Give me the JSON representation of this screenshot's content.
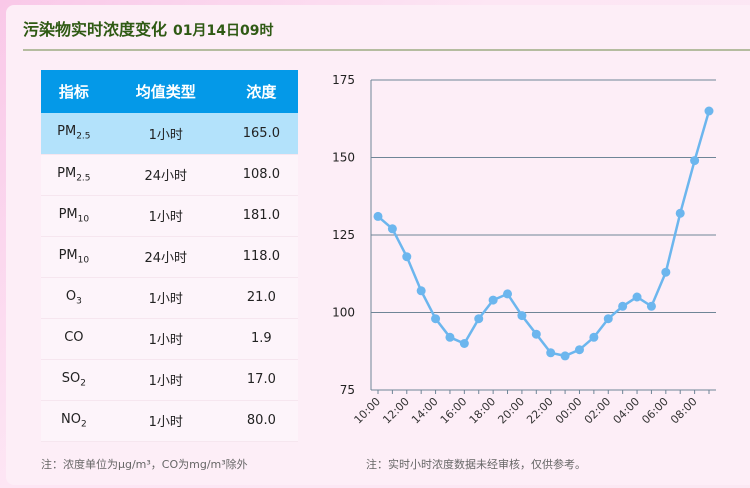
{
  "header": {
    "title": "污染物实时浓度变化",
    "datetime": "01月14日09时"
  },
  "table": {
    "columns": [
      "指标",
      "均值类型",
      "浓度"
    ],
    "rows": [
      {
        "name": "PM",
        "sub": "2.5",
        "type": "1小时",
        "value": "165.0",
        "selected": true
      },
      {
        "name": "PM",
        "sub": "2.5",
        "type": "24小时",
        "value": "108.0"
      },
      {
        "name": "PM",
        "sub": "10",
        "type": "1小时",
        "value": "181.0"
      },
      {
        "name": "PM",
        "sub": "10",
        "type": "24小时",
        "value": "118.0"
      },
      {
        "name": "O",
        "sub": "3",
        "type": "1小时",
        "value": "21.0"
      },
      {
        "name": "CO",
        "sub": "",
        "type": "1小时",
        "value": "1.9"
      },
      {
        "name": "SO",
        "sub": "2",
        "type": "1小时",
        "value": "17.0"
      },
      {
        "name": "NO",
        "sub": "2",
        "type": "1小时",
        "value": "80.0"
      }
    ]
  },
  "notes": {
    "left": "注：浓度单位为μg/m³，CO为mg/m³除外",
    "right": "注：实时小时浓度数据未经审核，仅供参考。"
  },
  "colors": {
    "header": "#0499e8",
    "selected_row": "#b3e2fb",
    "line": "#6cb6ee"
  },
  "chart_data": {
    "type": "line",
    "ylim": [
      75,
      175
    ],
    "yticks": [
      75,
      100,
      125,
      150,
      175
    ],
    "grid": true,
    "x": [
      "10:00",
      "11:00",
      "12:00",
      "13:00",
      "14:00",
      "15:00",
      "16:00",
      "17:00",
      "18:00",
      "19:00",
      "20:00",
      "21:00",
      "22:00",
      "23:00",
      "00:00",
      "01:00",
      "02:00",
      "03:00",
      "04:00",
      "05:00",
      "06:00",
      "07:00",
      "08:00",
      "09:00"
    ],
    "xticklabels": [
      "10:00",
      "12:00",
      "14:00",
      "16:00",
      "18:00",
      "20:00",
      "22:00",
      "00:00",
      "02:00",
      "04:00",
      "06:00",
      "08:00"
    ],
    "values": [
      131,
      127,
      118,
      107,
      98,
      92,
      90,
      98,
      104,
      106,
      99,
      93,
      87,
      86,
      88,
      92,
      98,
      102,
      105,
      102,
      113,
      132,
      149,
      165
    ]
  }
}
